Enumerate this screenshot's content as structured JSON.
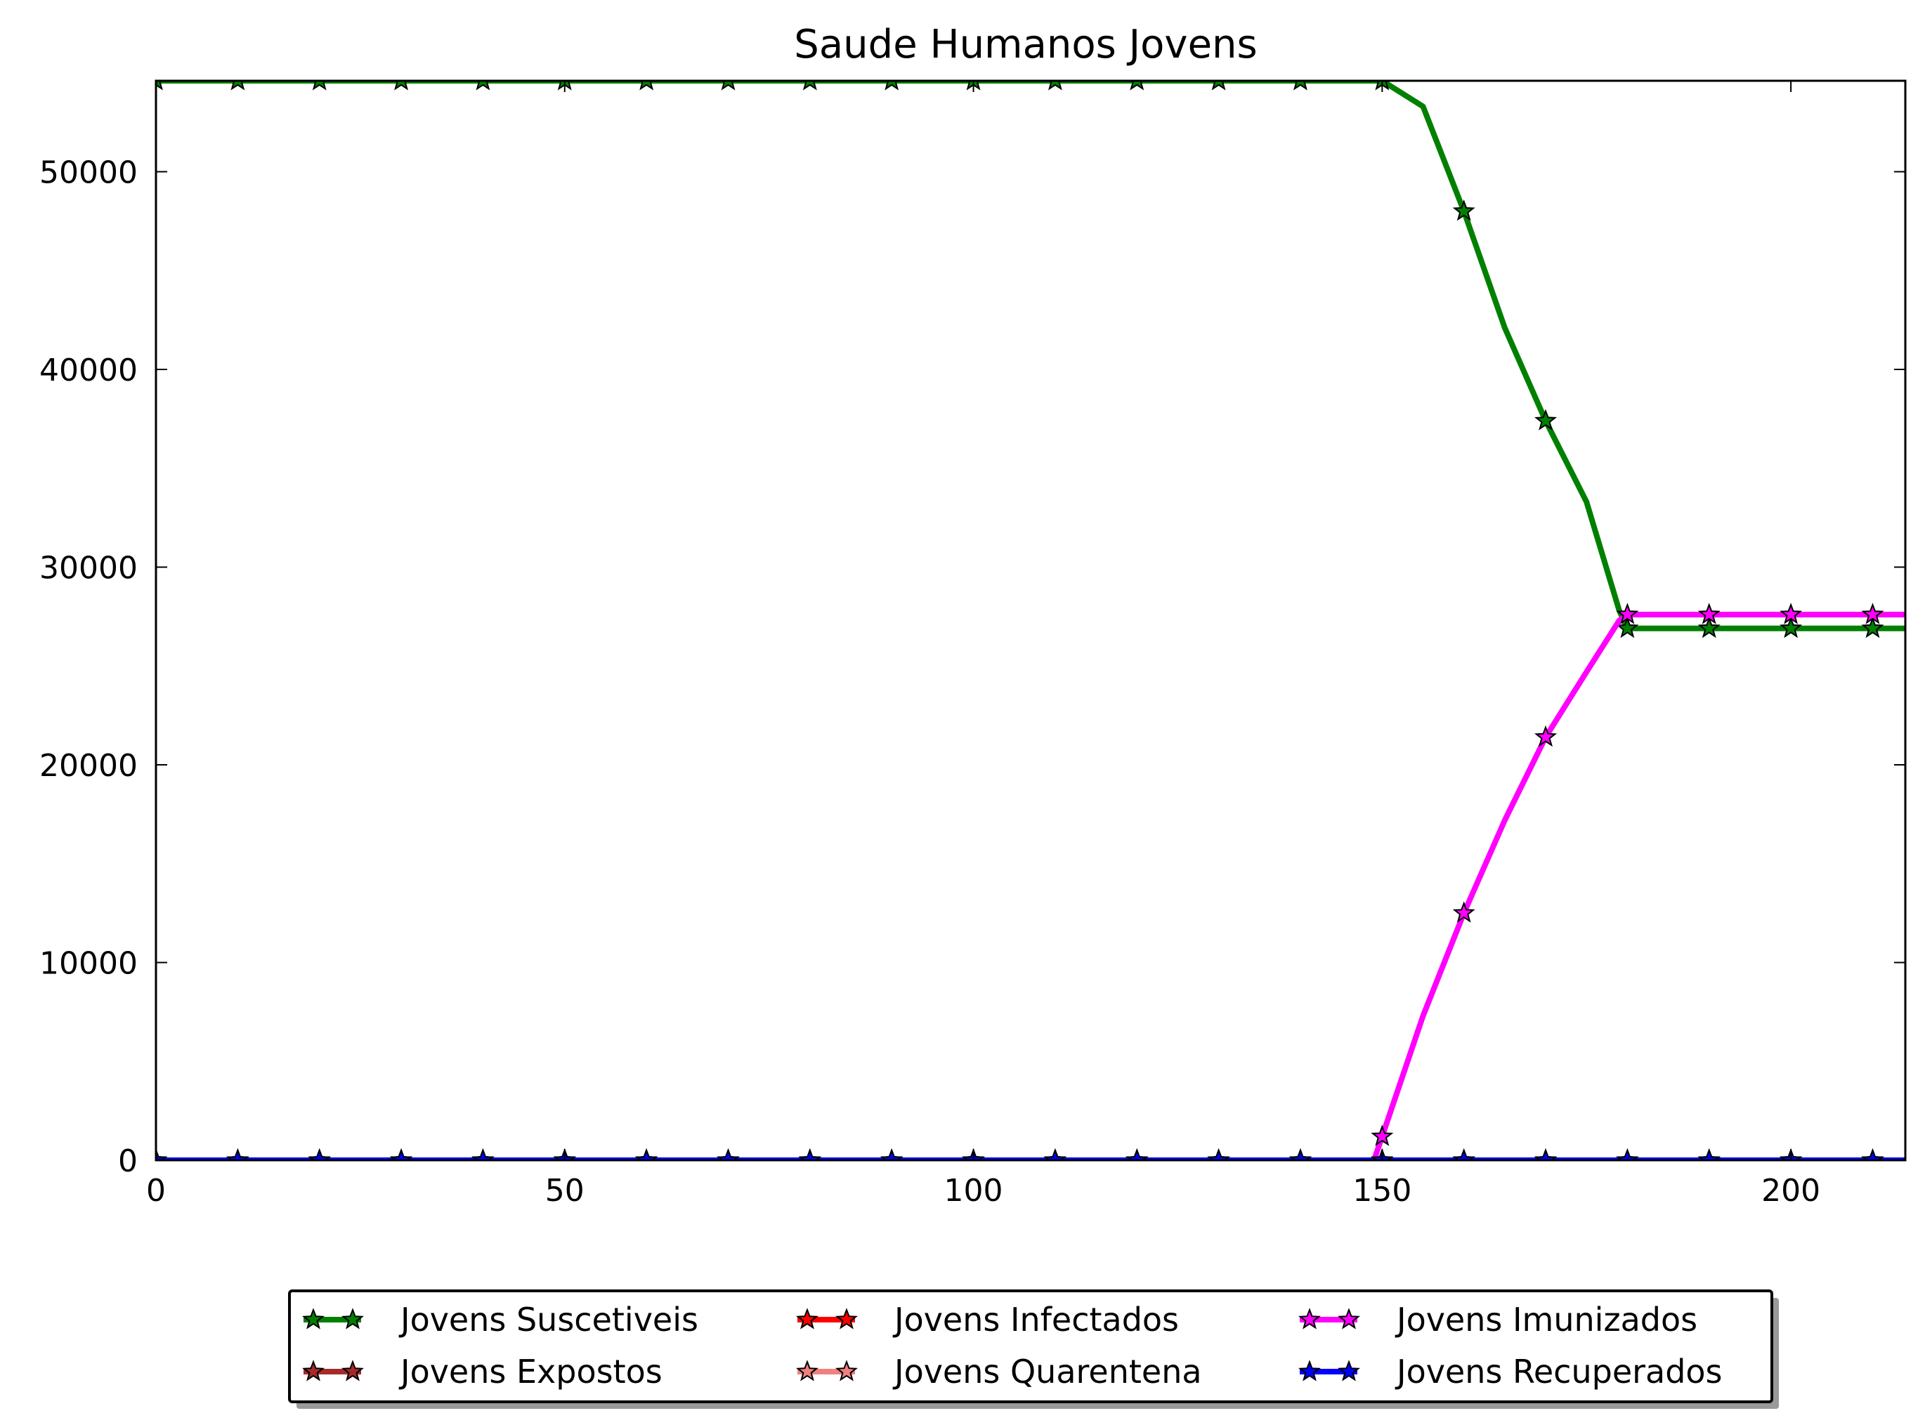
{
  "chart_data": {
    "type": "line",
    "title": "Saude Humanos Jovens",
    "xlabel": "",
    "ylabel": "",
    "xlim": [
      0,
      214
    ],
    "ylim": [
      0,
      54600
    ],
    "xticks": [
      0,
      50,
      100,
      150,
      200
    ],
    "yticks": [
      0,
      10000,
      20000,
      30000,
      40000,
      50000
    ],
    "grid": false,
    "legend_position": "bottom-center",
    "marker": "star",
    "marker_interval": 10,
    "series": [
      {
        "name": "Jovens Suscetiveis",
        "color": "#008000",
        "x": [
          0,
          150,
          155,
          160,
          165,
          170,
          175,
          179,
          180,
          190,
          200,
          210,
          214
        ],
        "y": [
          54600,
          54600,
          53300,
          48000,
          42100,
          37400,
          33300,
          27800,
          26900,
          26900,
          26900,
          26900,
          26900
        ]
      },
      {
        "name": "Jovens Expostos",
        "color": "#a52a2a",
        "x": [
          0,
          214
        ],
        "y": [
          0,
          0
        ]
      },
      {
        "name": "Jovens Infectados",
        "color": "#ff0000",
        "x": [
          0,
          214
        ],
        "y": [
          0,
          0
        ]
      },
      {
        "name": "Jovens Quarentena",
        "color": "#f08080",
        "x": [
          0,
          214
        ],
        "y": [
          0,
          0
        ]
      },
      {
        "name": "Jovens Imunizados",
        "color": "#ff00ff",
        "x": [
          0,
          149,
          150,
          155,
          160,
          165,
          170,
          175,
          179,
          180,
          190,
          200,
          210,
          214
        ],
        "y": [
          0,
          0,
          1200,
          7300,
          12500,
          17200,
          21400,
          24700,
          27300,
          27600,
          27600,
          27600,
          27600,
          27600
        ]
      },
      {
        "name": "Jovens Recuperados",
        "color": "#0000ff",
        "x": [
          0,
          214
        ],
        "y": [
          0,
          0
        ]
      }
    ]
  }
}
